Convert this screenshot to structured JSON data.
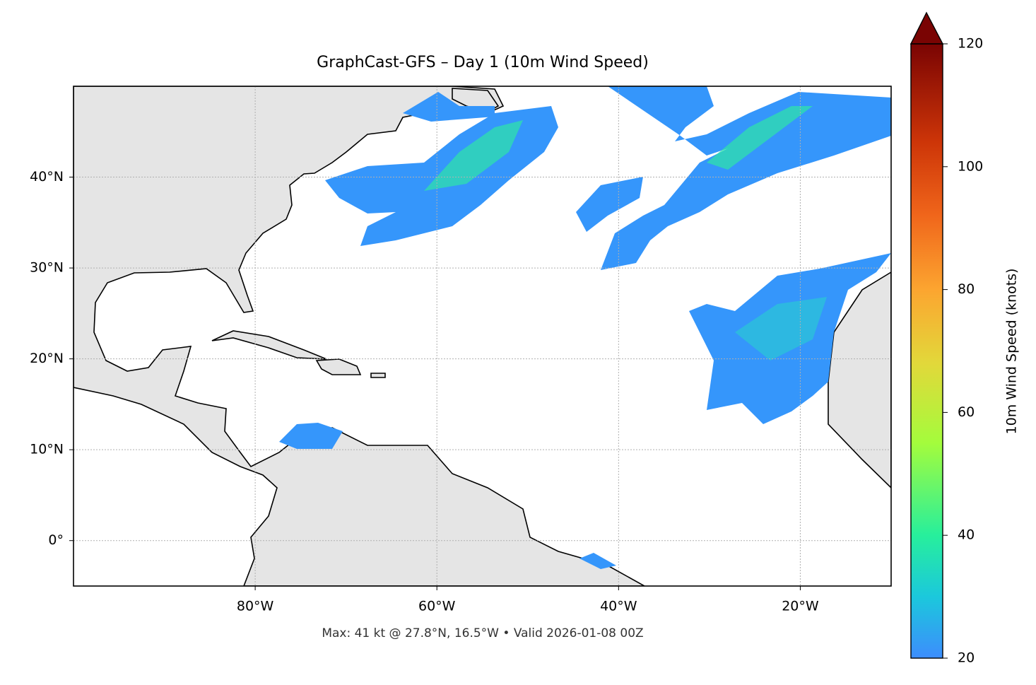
{
  "map": {
    "title": "GraphCast-GFS – Day 1 (10m Wind Speed)",
    "footnote": "Max: 41 kt @ 27.8°N, 16.5°W • Valid 2026-01-08 00Z",
    "lon_range": [
      -100,
      -10
    ],
    "lat_range": [
      -5,
      50
    ],
    "lon_ticks": [
      {
        "value": -80,
        "label": "80°W"
      },
      {
        "value": -60,
        "label": "60°W"
      },
      {
        "value": -40,
        "label": "40°W"
      },
      {
        "value": -20,
        "label": "20°W"
      }
    ],
    "lat_ticks": [
      {
        "value": 0,
        "label": "0°"
      },
      {
        "value": 10,
        "label": "10°N"
      },
      {
        "value": 20,
        "label": "20°N"
      },
      {
        "value": 30,
        "label": "30°N"
      },
      {
        "value": 40,
        "label": "40°N"
      }
    ],
    "colorbar": {
      "label": "10m Wind Speed (knots)",
      "range": [
        20,
        120
      ],
      "ticks": [
        20,
        40,
        60,
        80,
        100,
        120
      ]
    }
  }
}
